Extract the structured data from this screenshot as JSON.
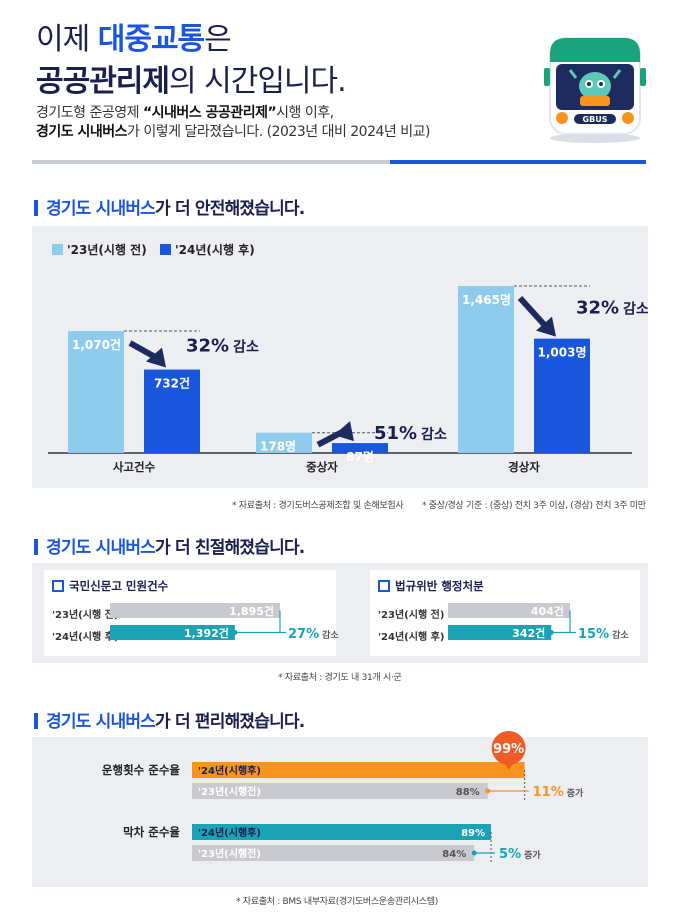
{
  "header": {
    "title_line1_pre": "이제 ",
    "title_line1_strong": "대중교통",
    "title_line1_post": "은",
    "title_line2_strong": "공공관리제",
    "title_line2_post": "의 시간입니다.",
    "intro_line1_pre": "경기도형 준공영제 ",
    "intro_line1_strong": "“시내버스 공공관리제”",
    "intro_line1_post": "시행 이후,",
    "intro_line2_strong": "경기도 시내버스",
    "intro_line2_post": "가 이렇게 달라졌습니다. (2023년 대비 2024년 비교)",
    "bus_sign": "GBUS"
  },
  "section1": {
    "heading_accent": "경기도 시내버스",
    "heading_rest": "가 더 안전해졌습니다.",
    "legend_before": "'23년(시행 전)",
    "legend_after": "'24년(시행 후)",
    "colors": {
      "before": "#8ecbec",
      "after": "#1a56db"
    },
    "note_source": "* 자료출처 : 경기도버스공제조합 및 손해보험사",
    "note_criteria": "* 중상/경상 기준 : (중상) 전치 3주 이상, (경상) 전치 3주 미만"
  },
  "chart_data": [
    {
      "type": "bar",
      "title": "경기도 시내버스가 더 안전해졌습니다.",
      "categories": [
        "사고건수",
        "중상자",
        "경상자"
      ],
      "series": [
        {
          "name": "'23년(시행 전)",
          "values": [
            1070,
            178,
            1465
          ]
        },
        {
          "name": "'24년(시행 후)",
          "values": [
            732,
            87,
            1003
          ]
        }
      ],
      "value_labels_before": [
        "1,070건",
        "178명",
        "1,465명"
      ],
      "value_labels_after": [
        "732건",
        "87명",
        "1,003명"
      ],
      "reductions": [
        {
          "num": "32%",
          "label": "감소"
        },
        {
          "num": "51%",
          "label": "감소"
        },
        {
          "num": "32%",
          "label": "감소"
        }
      ],
      "ylim": [
        0,
        1500
      ],
      "legend": "top-left",
      "grid": false
    },
    {
      "type": "bar",
      "title": "국민신문고 민원건수",
      "orientation": "horizontal",
      "categories": [
        "'23년(시행 전)",
        "'24년(시행 후)"
      ],
      "values": [
        1895,
        1392
      ],
      "value_labels": [
        "1,895건",
        "1,392건"
      ],
      "change": {
        "num": "27%",
        "label": "감소"
      }
    },
    {
      "type": "bar",
      "title": "법규위반 행정처분",
      "orientation": "horizontal",
      "categories": [
        "'23년(시행 전)",
        "'24년(시행 후)"
      ],
      "values": [
        404,
        342
      ],
      "value_labels": [
        "404건",
        "342건"
      ],
      "change": {
        "num": "15%",
        "label": "감소"
      }
    },
    {
      "type": "bar",
      "title": "경기도 시내버스가 더 편리해졌습니다.",
      "orientation": "horizontal",
      "categories": [
        "운행횟수 준수율",
        "막차 준수율"
      ],
      "series": [
        {
          "name": "'24년(시행후)",
          "values": [
            99,
            89
          ]
        },
        {
          "name": "'23년(시행전)",
          "values": [
            88,
            84
          ]
        }
      ],
      "xlim": [
        0,
        100
      ],
      "unit": "%",
      "changes": [
        {
          "num": "11%",
          "label": "증가"
        },
        {
          "num": "5%",
          "label": "증가"
        }
      ]
    }
  ],
  "section2": {
    "heading_accent": "경기도 시내버스",
    "heading_rest": "가 더 친절해졌습니다.",
    "card1_title": "국민신문고 민원건수",
    "card2_title": "법규위반 행정처분",
    "row_before": "'23년(시행 전)",
    "row_after": "'24년(시행 후)",
    "note_source": "* 자료출처 : 경기도 내 31개 시·군",
    "colors": {
      "before": "#c8cacf",
      "after": "#1aa3b5"
    }
  },
  "section3": {
    "heading_accent": "경기도 시내버스",
    "heading_rest": "가 더 편리해졌습니다.",
    "row_after": "'24년(시행후)",
    "row_before": "'23년(시행전)",
    "note_source": "* 자료출처 : BMS 내부자료(경기도버스운송관리시스템)",
    "colors": {
      "highlight": "#f7941d",
      "after": "#1aa3b5",
      "before": "#c8cacf",
      "bubble": "#f15a29"
    }
  }
}
